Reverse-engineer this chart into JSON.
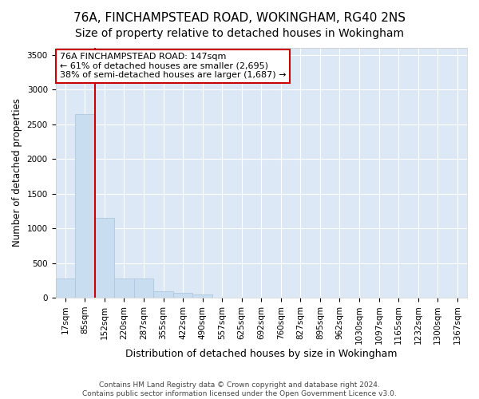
{
  "title1": "76A, FINCHAMPSTEAD ROAD, WOKINGHAM, RG40 2NS",
  "title2": "Size of property relative to detached houses in Wokingham",
  "xlabel": "Distribution of detached houses by size in Wokingham",
  "ylabel": "Number of detached properties",
  "categories": [
    "17sqm",
    "85sqm",
    "152sqm",
    "220sqm",
    "287sqm",
    "355sqm",
    "422sqm",
    "490sqm",
    "557sqm",
    "625sqm",
    "692sqm",
    "760sqm",
    "827sqm",
    "895sqm",
    "962sqm",
    "1030sqm",
    "1097sqm",
    "1165sqm",
    "1232sqm",
    "1300sqm",
    "1367sqm"
  ],
  "bar_values": [
    270,
    2640,
    1150,
    280,
    280,
    95,
    65,
    40,
    0,
    0,
    0,
    0,
    0,
    0,
    0,
    0,
    0,
    0,
    0,
    0,
    0
  ],
  "bar_color": "#c8ddf0",
  "bar_edgecolor": "#aec8e0",
  "vline_x": 2,
  "vline_color": "#cc0000",
  "ylim": [
    0,
    3600
  ],
  "yticks": [
    0,
    500,
    1000,
    1500,
    2000,
    2500,
    3000,
    3500
  ],
  "annotation_text": "76A FINCHAMPSTEAD ROAD: 147sqm\n← 61% of detached houses are smaller (2,695)\n38% of semi-detached houses are larger (1,687) →",
  "annotation_box_facecolor": "#ffffff",
  "annotation_box_edgecolor": "#cc0000",
  "footer1": "Contains HM Land Registry data © Crown copyright and database right 2024.",
  "footer2": "Contains public sector information licensed under the Open Government Licence v3.0.",
  "fig_bg_color": "#ffffff",
  "plot_bg_color": "#dce8f5",
  "grid_color": "#ffffff",
  "spine_color": "#cccccc",
  "title1_fontsize": 11,
  "title2_fontsize": 10,
  "xlabel_fontsize": 9,
  "ylabel_fontsize": 8.5,
  "tick_fontsize": 7.5,
  "annotation_fontsize": 8,
  "footer_fontsize": 6.5
}
